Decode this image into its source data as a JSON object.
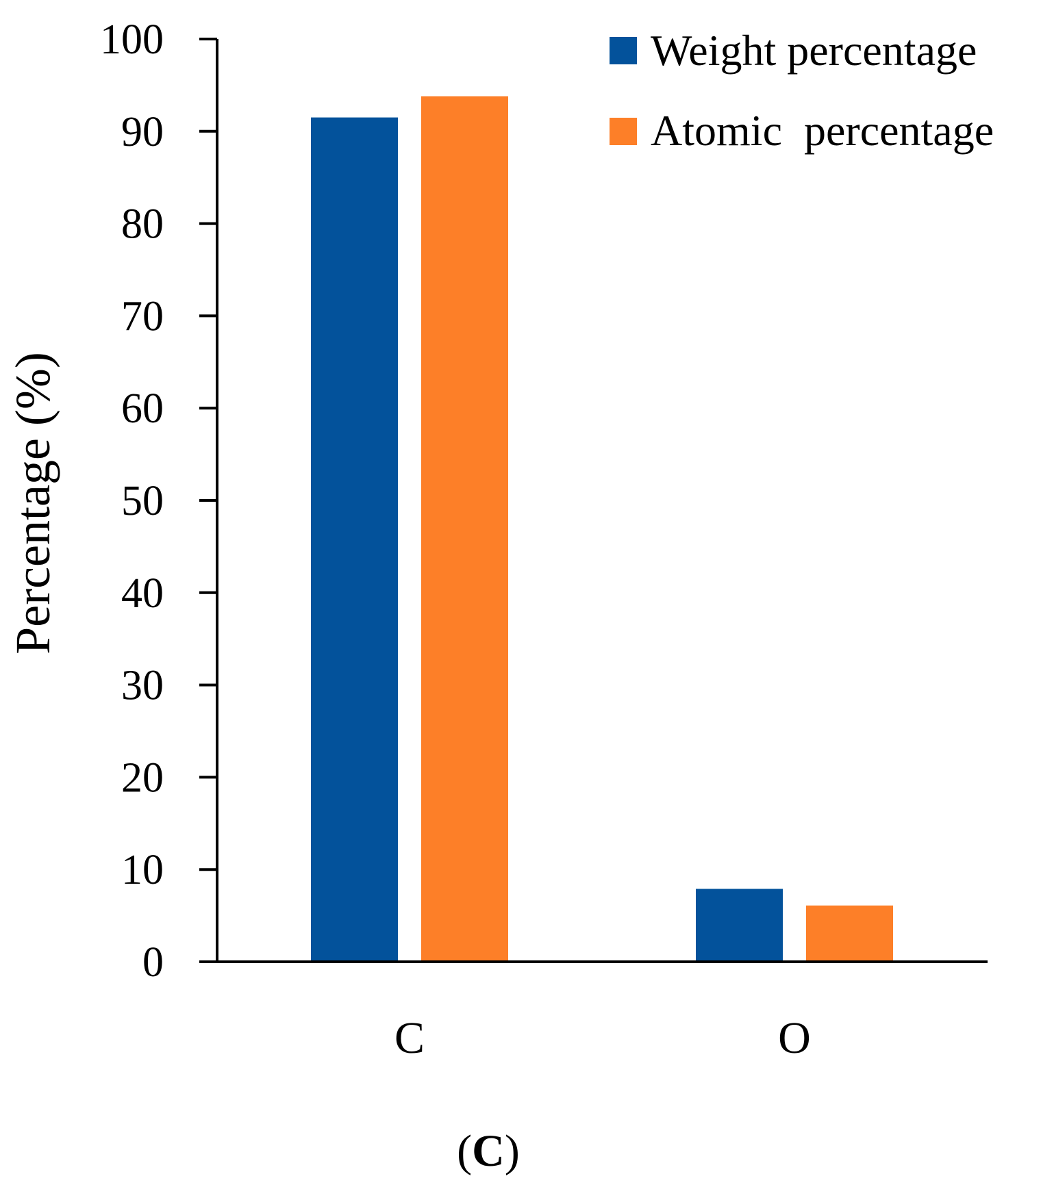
{
  "chart_data": {
    "type": "bar",
    "title": "",
    "xlabel": "",
    "ylabel": "Percentage (%)",
    "categories": [
      "C",
      "O"
    ],
    "series": [
      {
        "name": "Weight percentage",
        "color": "#03529b",
        "values": [
          91.5,
          7.9
        ]
      },
      {
        "name": "Atomic  percentage",
        "color": "#fd7f28",
        "values": [
          93.8,
          6.1
        ]
      }
    ],
    "ylim": [
      0,
      100
    ],
    "yticks": [
      "0",
      "10",
      "20",
      "30",
      "40",
      "50",
      "60",
      "70",
      "80",
      "90",
      "100"
    ],
    "grid": false,
    "legend": "top-right",
    "panel_label": {
      "open": "(",
      "letter": "C",
      "close": ")"
    }
  }
}
